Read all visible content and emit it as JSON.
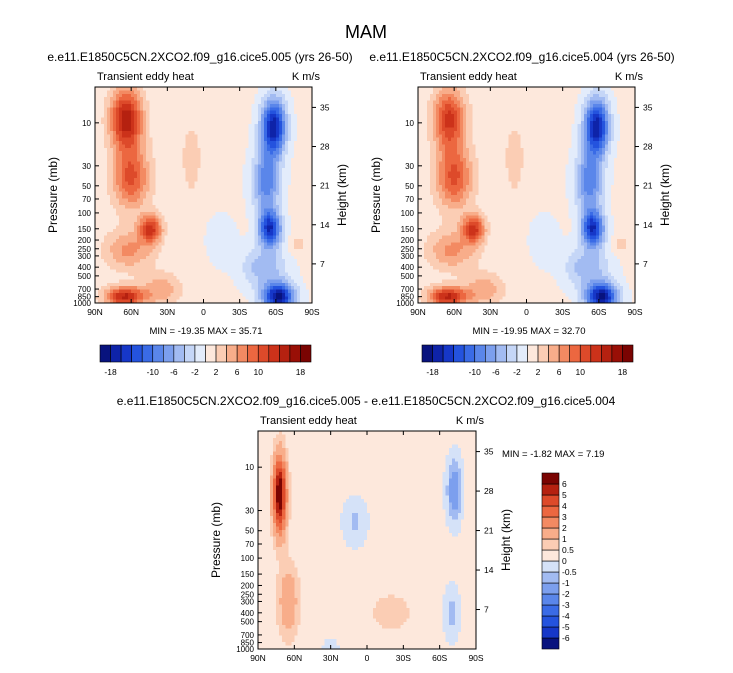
{
  "title": "MAM",
  "chart_data": [
    {
      "type": "heatmap",
      "panel": "top-left",
      "title": "e.e11.E1850C5CN.2XCO2.f09_g16.cice5.005 (yrs 26-50)",
      "subtitle_left": "Transient eddy heat",
      "subtitle_right": "K m/s",
      "ylabel": "Pressure (mb)",
      "ylabel_right": "Height (km)",
      "xticks": [
        "90N",
        "60N",
        "30N",
        "0",
        "30S",
        "60S",
        "90S"
      ],
      "yticks": [
        "10",
        "30",
        "50",
        "70",
        "100",
        "150",
        "200",
        "250",
        "300",
        "400",
        "500",
        "700",
        "850",
        "1000"
      ],
      "yticks_right": [
        "35",
        "28",
        "21",
        "14",
        "7"
      ],
      "min_max_text": "MIN = -19.35  MAX =  35.71",
      "colorbar_levels": [
        -20,
        -18,
        -16,
        -14,
        -12,
        -10,
        -8,
        -6,
        -4,
        -2,
        0,
        2,
        4,
        6,
        8,
        10,
        12,
        14,
        16,
        18,
        20
      ],
      "colorbar_labels": [
        "-18",
        "-10",
        "-6",
        "-2",
        "2",
        "6",
        "10",
        "18"
      ],
      "features": [
        {
          "lat": 65,
          "p": 10,
          "value": 35
        },
        {
          "lat": 45,
          "p": 150,
          "value": 12
        },
        {
          "lat": 65,
          "p": 800,
          "value": 14
        },
        {
          "lat": -58,
          "p": 10,
          "value": -18
        },
        {
          "lat": -55,
          "p": 150,
          "value": -16
        },
        {
          "lat": -62,
          "p": 850,
          "value": -19
        }
      ]
    },
    {
      "type": "heatmap",
      "panel": "top-right",
      "title": "e.e11.E1850C5CN.2XCO2.f09_g16.cice5.004 (yrs 26-50)",
      "subtitle_left": "Transient eddy heat",
      "subtitle_right": "K m/s",
      "ylabel": "Pressure (mb)",
      "ylabel_right": "Height (km)",
      "xticks": [
        "90N",
        "60N",
        "30N",
        "0",
        "30S",
        "60S",
        "90S"
      ],
      "yticks": [
        "10",
        "30",
        "50",
        "70",
        "100",
        "150",
        "200",
        "250",
        "300",
        "400",
        "500",
        "700",
        "850",
        "1000"
      ],
      "yticks_right": [
        "35",
        "28",
        "21",
        "14",
        "7"
      ],
      "min_max_text": "MIN = -19.95  MAX =  32.70",
      "colorbar_levels": [
        -20,
        -18,
        -16,
        -14,
        -12,
        -10,
        -8,
        -6,
        -4,
        -2,
        0,
        2,
        4,
        6,
        8,
        10,
        12,
        14,
        16,
        18,
        20
      ],
      "colorbar_labels": [
        "-18",
        "-10",
        "-6",
        "-2",
        "2",
        "6",
        "10",
        "18"
      ],
      "features": [
        {
          "lat": 65,
          "p": 10,
          "value": 32
        },
        {
          "lat": 45,
          "p": 150,
          "value": 12
        },
        {
          "lat": 65,
          "p": 800,
          "value": 14
        },
        {
          "lat": -58,
          "p": 10,
          "value": -18
        },
        {
          "lat": -55,
          "p": 150,
          "value": -16
        },
        {
          "lat": -62,
          "p": 850,
          "value": -19
        }
      ]
    },
    {
      "type": "heatmap",
      "panel": "bottom-difference",
      "title": "e.e11.E1850C5CN.2XCO2.f09_g16.cice5.005 - e.e11.E1850C5CN.2XCO2.f09_g16.cice5.004",
      "subtitle_left": "Transient eddy heat",
      "subtitle_right": "K m/s",
      "ylabel": "Pressure (mb)",
      "ylabel_right": "Height (km)",
      "xticks": [
        "90N",
        "60N",
        "30N",
        "0",
        "30S",
        "60S",
        "90S"
      ],
      "yticks": [
        "10",
        "30",
        "50",
        "70",
        "100",
        "150",
        "200",
        "250",
        "300",
        "400",
        "500",
        "700",
        "850",
        "1000"
      ],
      "yticks_right": [
        "35",
        "28",
        "21",
        "14",
        "7"
      ],
      "min_max_text": "MIN =  -1.82  MAX =   7.19",
      "colorbar_levels": [
        -7,
        -6,
        -5,
        -4,
        -3,
        -2,
        -1,
        -0.5,
        0,
        0.5,
        1,
        2,
        3,
        4,
        5,
        6,
        7
      ],
      "colorbar_labels": [
        "-6",
        "-5",
        "-4",
        "-3",
        "-2",
        "-1",
        "-0.5",
        "0",
        "0.5",
        "1",
        "2",
        "3",
        "4",
        "5",
        "6"
      ],
      "features": [
        {
          "lat": 72,
          "p": 20,
          "value": 7
        },
        {
          "lat": -72,
          "p": 20,
          "value": -1.8
        }
      ]
    }
  ]
}
